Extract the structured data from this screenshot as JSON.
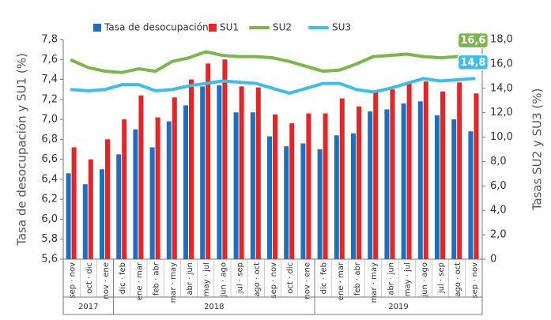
{
  "chart_data": {
    "type": "bar_line",
    "categories": [
      "sep · nov",
      "oct · dic",
      "nov · ene",
      "dic · feb",
      "ene · mar",
      "feb · abr",
      "mar · may",
      "abr · jun",
      "may · jul",
      "jun · ago",
      "jul · sep",
      "ago · oct",
      "sep · nov",
      "oct · dic",
      "nov · ene",
      "dic · feb",
      "ene · mar",
      "feb · abr",
      "mar · may",
      "abr · jun",
      "may · jul",
      "jun · ago",
      "jul · sep",
      "ago · oct",
      "sep · nov"
    ],
    "years": [
      {
        "label": "2017",
        "span": 3
      },
      {
        "label": "2018",
        "span": 12
      },
      {
        "label": "2019",
        "span": 10
      }
    ],
    "ylabel": "Tasa de desocupación y SU1 (%)",
    "y2label": "Tasas SU2 y SU3 (%)",
    "ylim": [
      5.6,
      7.8
    ],
    "yticks": [
      {
        "value": 5.6,
        "label": "5,6"
      },
      {
        "value": 5.8,
        "label": "5,8"
      },
      {
        "value": 6.0,
        "label": "6,0"
      },
      {
        "value": 6.2,
        "label": "6,2"
      },
      {
        "value": 6.4,
        "label": "6,4"
      },
      {
        "value": 6.6,
        "label": "6,6"
      },
      {
        "value": 6.8,
        "label": "6,8"
      },
      {
        "value": 7.0,
        "label": "7,0"
      },
      {
        "value": 7.2,
        "label": "7,2"
      },
      {
        "value": 7.4,
        "label": "7,4"
      },
      {
        "value": 7.6,
        "label": "7,6"
      },
      {
        "value": 7.8,
        "label": "7,8"
      }
    ],
    "y2lim": [
      0,
      18
    ],
    "y2ticks": [
      0,
      {
        "value": 2,
        "label": "2,0"
      },
      {
        "value": 4,
        "label": "4,0"
      },
      {
        "value": 6,
        "label": "6,0"
      },
      {
        "value": 8,
        "label": "8,0"
      },
      {
        "value": 10,
        "label": "10,0"
      },
      {
        "value": 12,
        "label": "12,0"
      },
      {
        "value": 14,
        "label": "14,0"
      },
      {
        "value": 16,
        "label": "16,0"
      },
      {
        "value": 18,
        "label": "18,0"
      }
    ],
    "series": [
      {
        "name": "Tasa de desocupación",
        "kind": "bar",
        "color": "#1f6fbf",
        "values": [
          6.46,
          6.35,
          6.5,
          6.65,
          6.9,
          6.72,
          6.98,
          7.14,
          7.33,
          7.34,
          7.07,
          7.07,
          6.83,
          6.73,
          6.76,
          6.7,
          6.84,
          6.86,
          7.08,
          7.1,
          7.16,
          7.18,
          7.04,
          7.0,
          6.88
        ]
      },
      {
        "name": "SU1",
        "kind": "bar",
        "color": "#e52528",
        "values": [
          6.72,
          6.6,
          6.8,
          7.0,
          7.24,
          7.02,
          7.22,
          7.4,
          7.56,
          7.6,
          7.33,
          7.32,
          7.05,
          6.96,
          7.06,
          7.06,
          7.21,
          7.13,
          7.27,
          7.3,
          7.36,
          7.38,
          7.28,
          7.37,
          7.26
        ]
      },
      {
        "name": "SU2",
        "kind": "line",
        "axis": "y2",
        "color": "#7ab648",
        "values": [
          16.3,
          15.7,
          15.4,
          15.3,
          15.6,
          15.4,
          16.2,
          16.5,
          17.0,
          16.7,
          16.6,
          16.6,
          16.5,
          16.2,
          15.8,
          15.4,
          15.5,
          16.0,
          16.6,
          16.7,
          16.8,
          16.6,
          16.5,
          16.6,
          16.6
        ]
      },
      {
        "name": "SU3",
        "kind": "line",
        "axis": "y2",
        "color": "#3dbde8",
        "values": [
          13.9,
          13.8,
          13.9,
          14.3,
          14.3,
          13.8,
          13.9,
          14.2,
          14.4,
          14.6,
          14.5,
          14.4,
          14.0,
          13.6,
          14.0,
          14.4,
          14.4,
          13.9,
          13.7,
          14.0,
          14.4,
          14.8,
          14.6,
          14.7,
          14.8
        ]
      }
    ],
    "annotations": [
      {
        "label": "16,6",
        "value": 16.6,
        "color": "#7ab648"
      },
      {
        "label": "14,8",
        "value": 14.8,
        "color": "#3dbde8"
      }
    ]
  }
}
